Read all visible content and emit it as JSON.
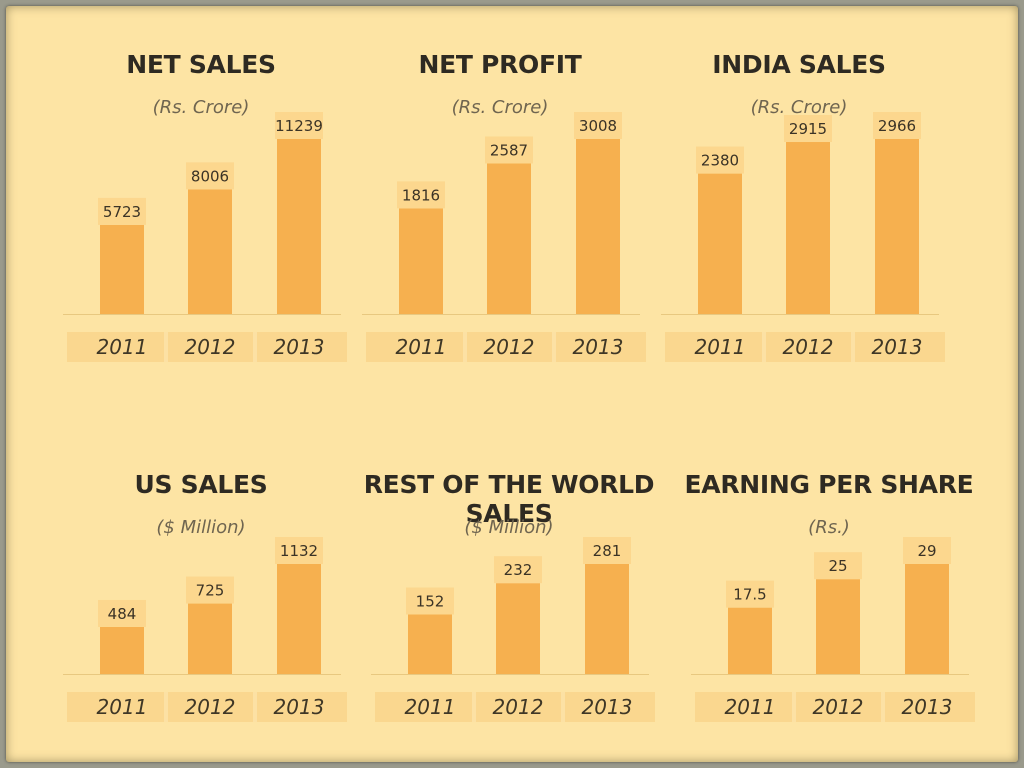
{
  "colors": {
    "background": "#fde4a4",
    "bar": "#f6b04f",
    "label_box": "#fcd78e",
    "axis_band": "#fad78f",
    "baseline": "#e8c880"
  },
  "chart_data": [
    {
      "type": "bar",
      "title": "NET SALES",
      "subtitle": "(Rs. Crore)",
      "categories": [
        "2011",
        "2012",
        "2013"
      ],
      "values": [
        5723,
        8006,
        11239
      ],
      "value_labels": [
        "5723",
        "8006",
        "11239"
      ],
      "grid": false
    },
    {
      "type": "bar",
      "title": "NET PROFIT",
      "subtitle": "(Rs. Crore)",
      "categories": [
        "2011",
        "2012",
        "2013"
      ],
      "values": [
        1816,
        2587,
        3008
      ],
      "value_labels": [
        "1816",
        "2587",
        "3008"
      ],
      "grid": false
    },
    {
      "type": "bar",
      "title": "INDIA SALES",
      "subtitle": "(Rs. Crore)",
      "categories": [
        "2011",
        "2012",
        "2013"
      ],
      "values": [
        2380,
        2915,
        2966
      ],
      "value_labels": [
        "2380",
        "2915",
        "2966"
      ],
      "grid": false
    },
    {
      "type": "bar",
      "title": "US SALES",
      "subtitle": "($ Million)",
      "categories": [
        "2011",
        "2012",
        "2013"
      ],
      "values": [
        484,
        725,
        1132
      ],
      "value_labels": [
        "484",
        "725",
        "1132"
      ],
      "grid": false
    },
    {
      "type": "bar",
      "title": "REST OF THE WORLD SALES",
      "subtitle": "($ Million)",
      "categories": [
        "2011",
        "2012",
        "2013"
      ],
      "values": [
        152,
        232,
        281
      ],
      "value_labels": [
        "152",
        "232",
        "281"
      ],
      "grid": false
    },
    {
      "type": "bar",
      "title": "EARNING PER SHARE",
      "subtitle": "(Rs.)",
      "categories": [
        "2011",
        "2012",
        "2013"
      ],
      "values": [
        17.5,
        25,
        29
      ],
      "value_labels": [
        "17.5",
        "25",
        "29"
      ],
      "grid": false
    }
  ]
}
